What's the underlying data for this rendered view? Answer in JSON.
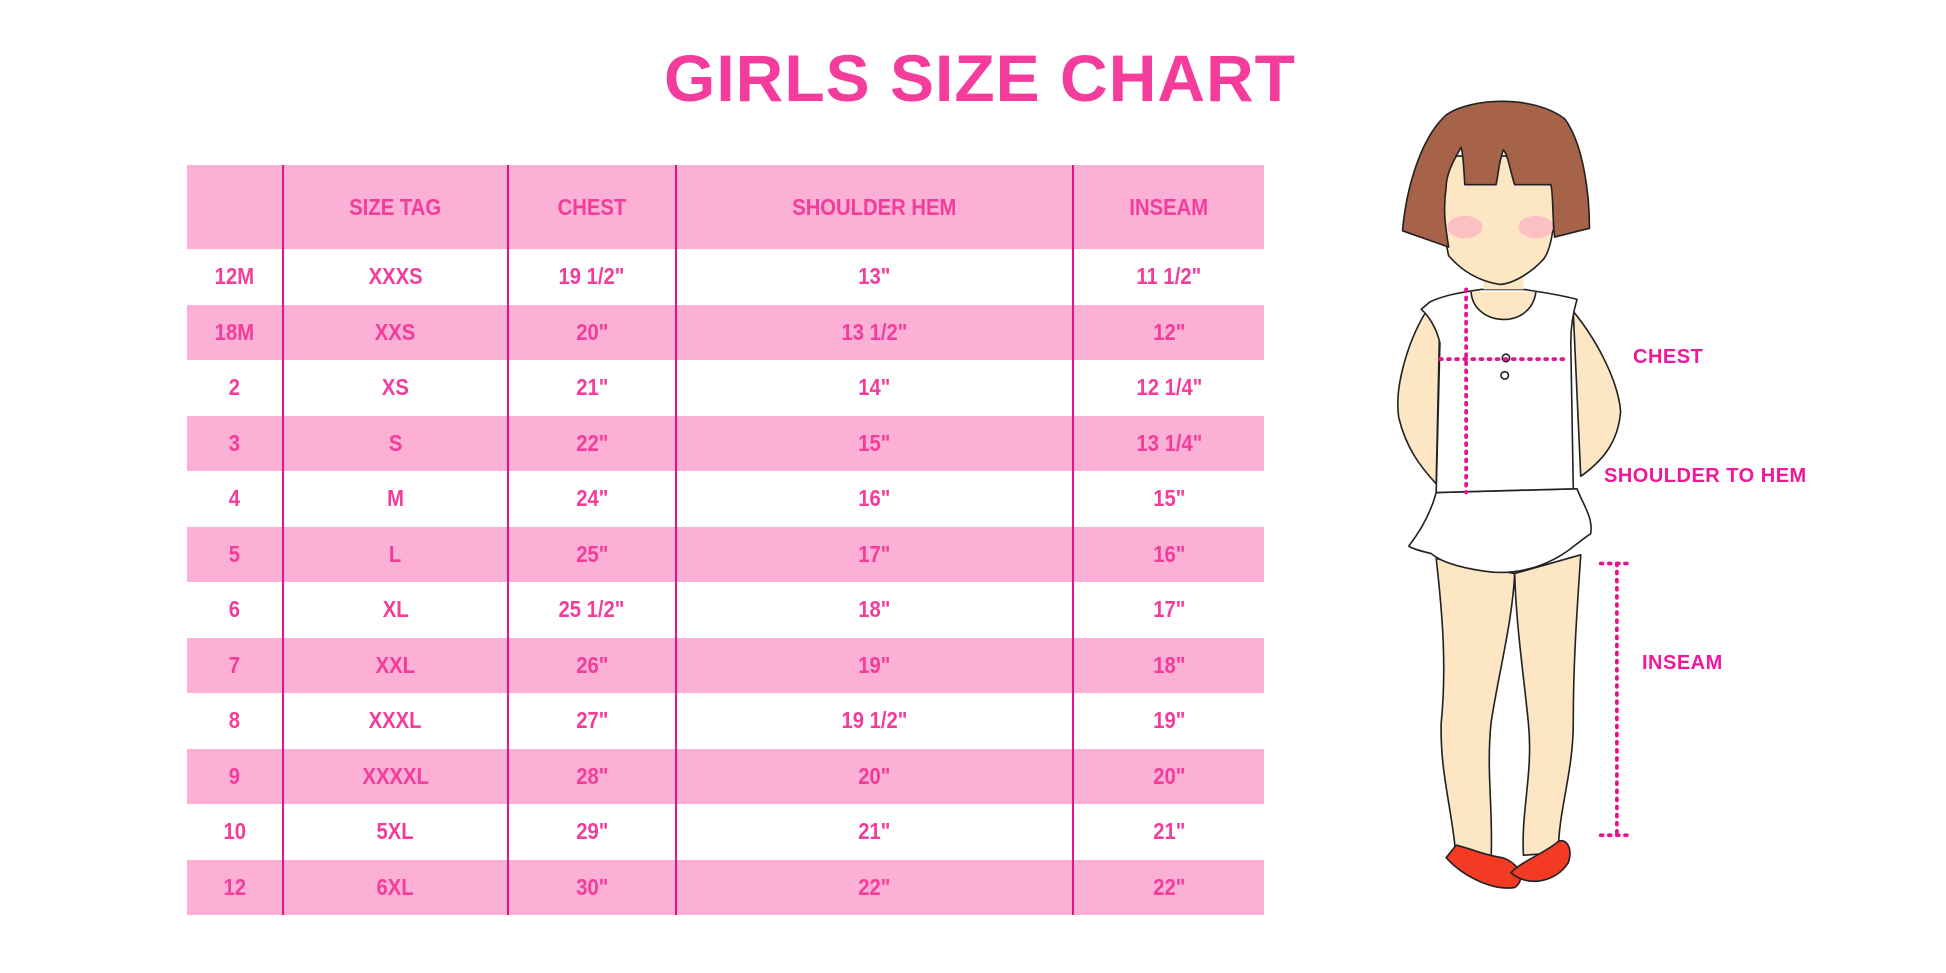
{
  "title": "GIRLS SIZE CHART",
  "colors": {
    "accent": "#f33c9b",
    "row_band": "#fdb0d5",
    "divider": "#e8128e",
    "label": "#f0189a"
  },
  "table": {
    "headers": [
      "",
      "SIZE TAG",
      "CHEST",
      "SHOULDER HEM",
      "INSEAM"
    ],
    "rows": [
      [
        "12M",
        "XXXS",
        "19 1/2\"",
        "13\"",
        "11 1/2\""
      ],
      [
        "18M",
        "XXS",
        "20\"",
        "13 1/2\"",
        "12\""
      ],
      [
        "2",
        "XS",
        "21\"",
        "14\"",
        "12 1/4\""
      ],
      [
        "3",
        "S",
        "22\"",
        "15\"",
        "13 1/4\""
      ],
      [
        "4",
        "M",
        "24\"",
        "16\"",
        "15\""
      ],
      [
        "5",
        "L",
        "25\"",
        "17\"",
        "16\""
      ],
      [
        "6",
        "XL",
        "25 1/2\"",
        "18\"",
        "17\""
      ],
      [
        "7",
        "XXL",
        "26\"",
        "19\"",
        "18\""
      ],
      [
        "8",
        "XXXL",
        "27\"",
        "19 1/2\"",
        "19\""
      ],
      [
        "9",
        "XXXXL",
        "28\"",
        "20\"",
        "20\""
      ],
      [
        "10",
        "5XL",
        "29\"",
        "21\"",
        "21\""
      ],
      [
        "12",
        "6XL",
        "30\"",
        "22\"",
        "22\""
      ]
    ]
  },
  "figure": {
    "icon": "girl-measurement-illustration",
    "labels": {
      "chest": "CHEST",
      "shoulder_to_hem": "SHOULDER TO HEM",
      "inseam": "INSEAM"
    }
  }
}
